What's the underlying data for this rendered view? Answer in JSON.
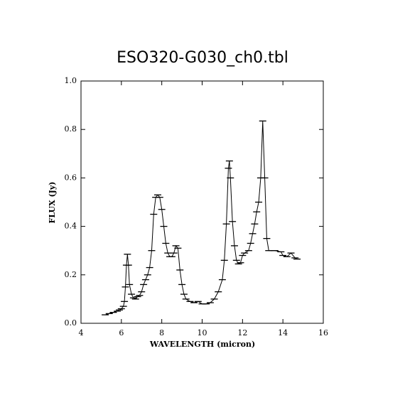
{
  "chart_data": {
    "type": "line",
    "title": "ESO320-G030_ch0.tbl",
    "x_label": "WAVELENGTH (micron)",
    "y_label": "FLUX (Jy)",
    "color": "#000000",
    "xlim": [
      4,
      16
    ],
    "xticks": [
      4,
      6,
      8,
      10,
      12,
      14,
      16
    ],
    "ylim": [
      0,
      1
    ],
    "yticks": [
      {
        "value": 0,
        "label": "0.0"
      },
      {
        "value": 0.2,
        "label": "0.2"
      },
      {
        "value": 0.4,
        "label": "0.4"
      },
      {
        "value": 0.6,
        "label": "0.6"
      },
      {
        "value": 0.8,
        "label": "0.8"
      },
      {
        "value": 1,
        "label": "1.0"
      }
    ],
    "x": [
      5.2,
      5.4,
      5.6,
      5.8,
      5.9,
      6.0,
      6.1,
      6.15,
      6.2,
      6.25,
      6.3,
      6.35,
      6.4,
      6.5,
      6.6,
      6.7,
      6.8,
      6.9,
      7.0,
      7.1,
      7.2,
      7.3,
      7.4,
      7.5,
      7.6,
      7.7,
      7.8,
      7.9,
      8.0,
      8.1,
      8.2,
      8.3,
      8.4,
      8.5,
      8.6,
      8.7,
      8.8,
      8.9,
      9.0,
      9.1,
      9.2,
      9.4,
      9.6,
      9.8,
      10.0,
      10.2,
      10.4,
      10.6,
      10.8,
      11.0,
      11.1,
      11.2,
      11.3,
      11.35,
      11.4,
      11.5,
      11.6,
      11.7,
      11.8,
      11.9,
      12.0,
      12.1,
      12.3,
      12.4,
      12.5,
      12.6,
      12.7,
      12.8,
      12.9,
      13.0,
      13.1,
      13.2,
      13.3,
      13.6,
      13.9,
      14.0,
      14.2,
      14.4,
      14.6,
      14.7
    ],
    "values": [
      0.035,
      0.04,
      0.045,
      0.05,
      0.055,
      0.06,
      0.07,
      0.09,
      0.15,
      0.24,
      0.285,
      0.24,
      0.16,
      0.12,
      0.105,
      0.1,
      0.11,
      0.115,
      0.13,
      0.16,
      0.18,
      0.2,
      0.23,
      0.3,
      0.45,
      0.52,
      0.53,
      0.52,
      0.47,
      0.4,
      0.33,
      0.29,
      0.275,
      0.275,
      0.29,
      0.32,
      0.31,
      0.22,
      0.16,
      0.12,
      0.1,
      0.09,
      0.085,
      0.09,
      0.08,
      0.08,
      0.085,
      0.1,
      0.13,
      0.18,
      0.26,
      0.41,
      0.64,
      0.67,
      0.6,
      0.42,
      0.32,
      0.26,
      0.245,
      0.25,
      0.28,
      0.29,
      0.3,
      0.33,
      0.37,
      0.41,
      0.46,
      0.5,
      0.6,
      0.835,
      0.6,
      0.35,
      0.3,
      0.3,
      0.295,
      0.28,
      0.275,
      0.29,
      0.27,
      0.265
    ]
  }
}
